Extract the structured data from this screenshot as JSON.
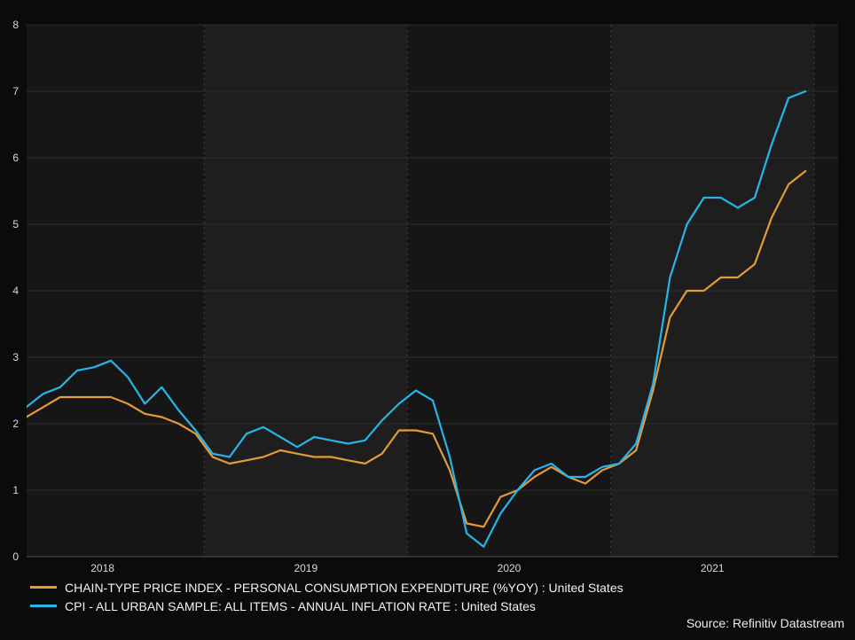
{
  "chart_data": {
    "type": "line",
    "title": "",
    "x_unit": "month",
    "x_start": "2018-01",
    "x_freq": "monthly",
    "years": [
      "2018",
      "2019",
      "2020",
      "2021"
    ],
    "ylim": [
      0,
      8
    ],
    "yticks": [
      0,
      1,
      2,
      3,
      4,
      5,
      6,
      7,
      8
    ],
    "grid": true,
    "legend_position": "bottom-left",
    "series": [
      {
        "id": "pce",
        "name": "CHAIN-TYPE PRICE INDEX - PERSONAL CONSUMPTION EXPENDITURE (%YOY) : United States",
        "color": "#E39A38",
        "values": [
          1.95,
          2.1,
          2.25,
          2.4,
          2.4,
          2.4,
          2.4,
          2.3,
          2.15,
          2.1,
          2.0,
          1.85,
          1.5,
          1.4,
          1.45,
          1.5,
          1.6,
          1.55,
          1.5,
          1.5,
          1.45,
          1.4,
          1.55,
          1.9,
          1.9,
          1.85,
          1.3,
          0.5,
          0.45,
          0.9,
          1.0,
          1.2,
          1.35,
          1.2,
          1.1,
          1.3,
          1.4,
          1.6,
          2.5,
          3.6,
          4.0,
          4.0,
          4.2,
          4.2,
          4.4,
          5.1,
          5.6,
          5.8
        ]
      },
      {
        "id": "cpi",
        "name": "CPI - ALL URBAN SAMPLE: ALL ITEMS - ANNUAL INFLATION RATE : United States",
        "color": "#27B4E8",
        "values": [
          2.15,
          2.25,
          2.45,
          2.55,
          2.8,
          2.85,
          2.95,
          2.7,
          2.3,
          2.55,
          2.2,
          1.9,
          1.55,
          1.5,
          1.85,
          1.95,
          1.8,
          1.65,
          1.8,
          1.75,
          1.7,
          1.75,
          2.05,
          2.3,
          2.5,
          2.35,
          1.5,
          0.35,
          0.15,
          0.65,
          1.0,
          1.3,
          1.4,
          1.2,
          1.2,
          1.35,
          1.4,
          1.7,
          2.6,
          4.2,
          5.0,
          5.4,
          5.4,
          5.25,
          5.4,
          6.2,
          6.9,
          7.0
        ]
      }
    ],
    "colors": {
      "background": "#0b0b0b",
      "band_dark": "#161616",
      "band_light": "#1e1e1e",
      "grid": "#2d2d2d",
      "grid_dashed": "#3e3e3e",
      "axis": "#505050",
      "tick_text": "#d9d9d9"
    }
  },
  "source": {
    "label": "Source: Refinitiv Datastream"
  }
}
